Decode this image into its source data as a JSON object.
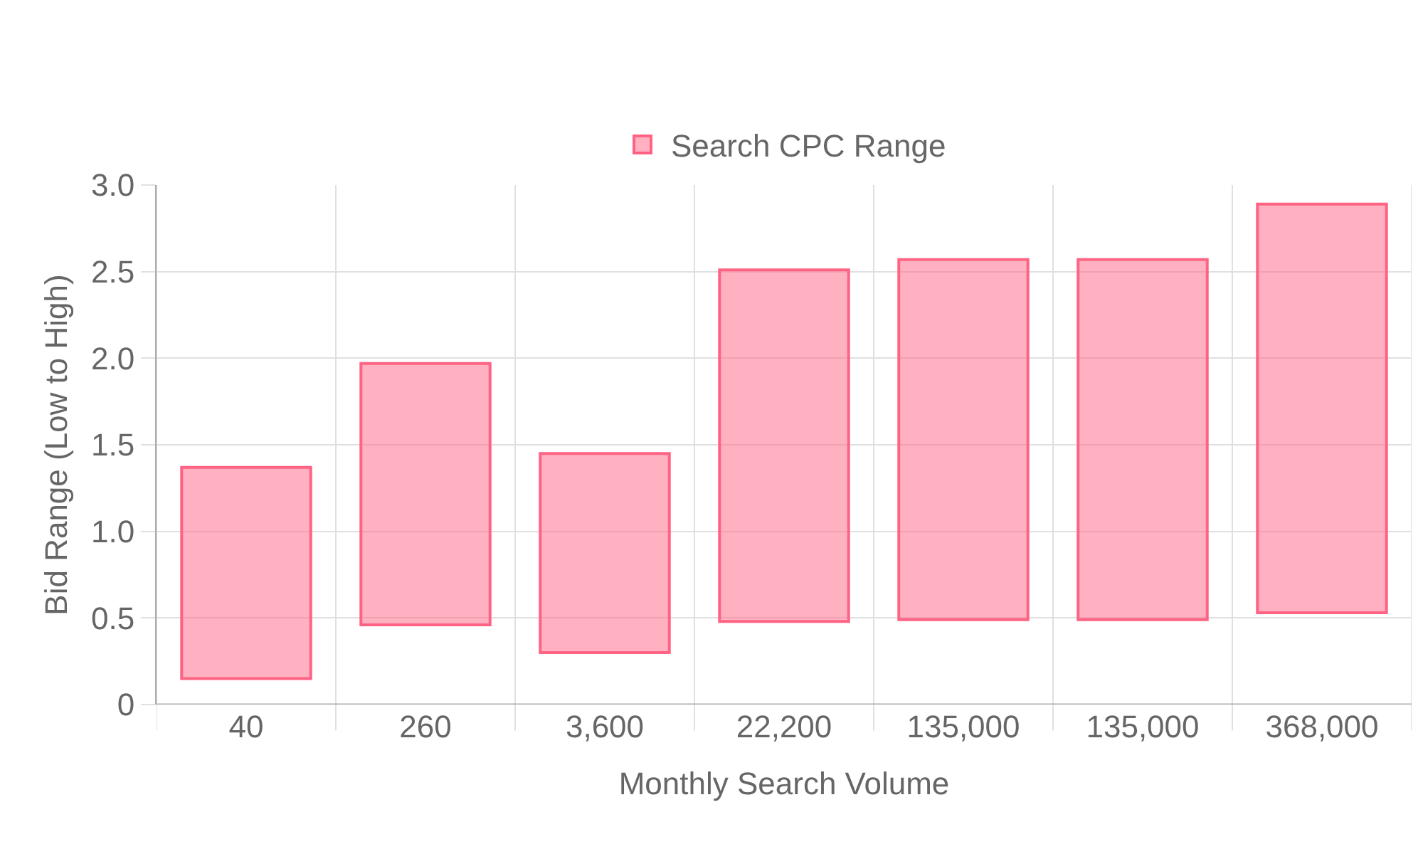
{
  "chart_data": {
    "type": "bar",
    "xlabel": "Monthly Search Volume",
    "ylabel": "Bid Range (Low to High)",
    "categories": [
      "40",
      "260",
      "3,600",
      "22,200",
      "135,000",
      "135,000",
      "368,000"
    ],
    "series": [
      {
        "name": "Search CPC Range",
        "color": "#ff6384",
        "values": [
          1.22,
          1.51,
          1.15,
          2.03,
          2.08,
          2.08,
          2.36
        ],
        "base": [
          0.15,
          0.46,
          0.3,
          0.48,
          0.49,
          0.49,
          0.53
        ]
      }
    ],
    "ylim": [
      0,
      3
    ],
    "yticks": [
      0,
      {
        "value": 0.5,
        "label": "0.5"
      },
      {
        "value": 1,
        "label": "1.0"
      },
      {
        "value": 1.5,
        "label": "1.5"
      },
      {
        "value": 2,
        "label": "2.0"
      },
      {
        "value": 2.5,
        "label": "2.5"
      },
      {
        "value": 3,
        "label": "3.0"
      }
    ],
    "grid": true,
    "legend": "top"
  }
}
